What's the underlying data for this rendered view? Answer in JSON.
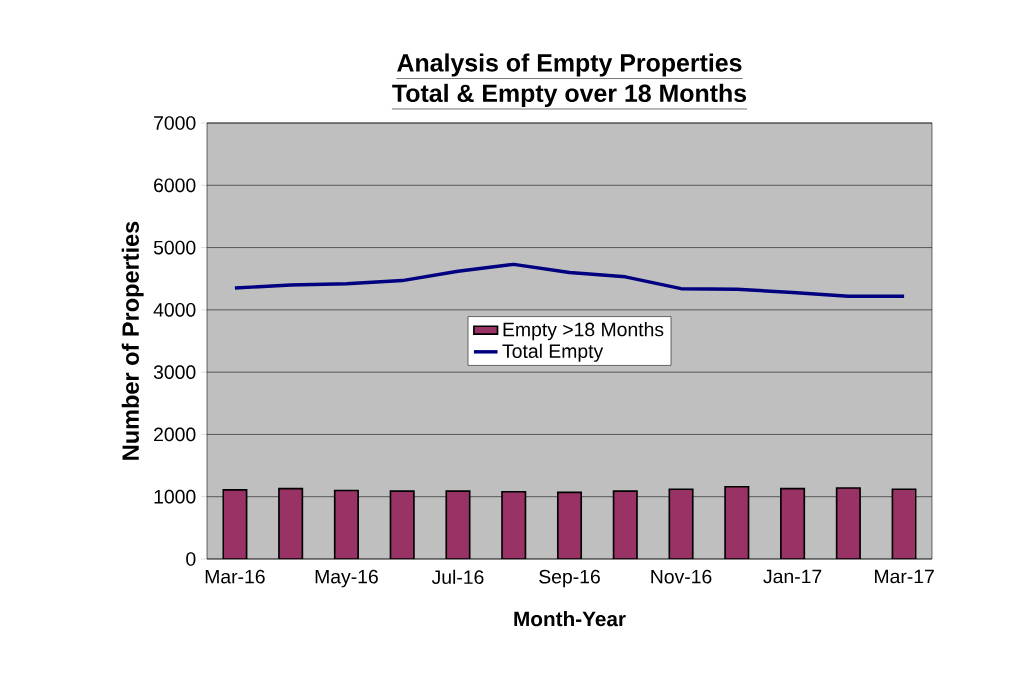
{
  "chart_data": {
    "type": "bar",
    "title": "**Analysis of Empty Properties**",
    "subtitle": "**Total & Empty over 18 Months**",
    "xlabel": "Month-Year",
    "ylabel": "Number of Properties",
    "categories": [
      "Mar-16",
      null,
      "May-16",
      null,
      "Jul-16",
      null,
      "Sep-16",
      null,
      "Nov-16",
      null,
      "Jan-17",
      null,
      "Mar-17"
    ],
    "series": [
      {
        "name": "Empty >18 Months",
        "color": "#993366",
        "values": [
          1110,
          1130,
          1100,
          1090,
          1090,
          1080,
          1070,
          1090,
          1120,
          1160,
          1130,
          1140,
          1120
        ]
      },
      {
        "name": "Total Empty",
        "type": "line",
        "color": "#000080",
        "values": [
          4350,
          4400,
          4420,
          4470,
          4620,
          4730,
          4600,
          4530,
          4340,
          4330,
          4280,
          4220,
          4220
        ]
      }
    ],
    "ylim": [
      0,
      7000
    ],
    "yticks": [
      0,
      1000,
      2000,
      3000,
      4000,
      5000,
      6000,
      7000
    ],
    "grid": "y",
    "legend": "center",
    "marker": "none"
  }
}
